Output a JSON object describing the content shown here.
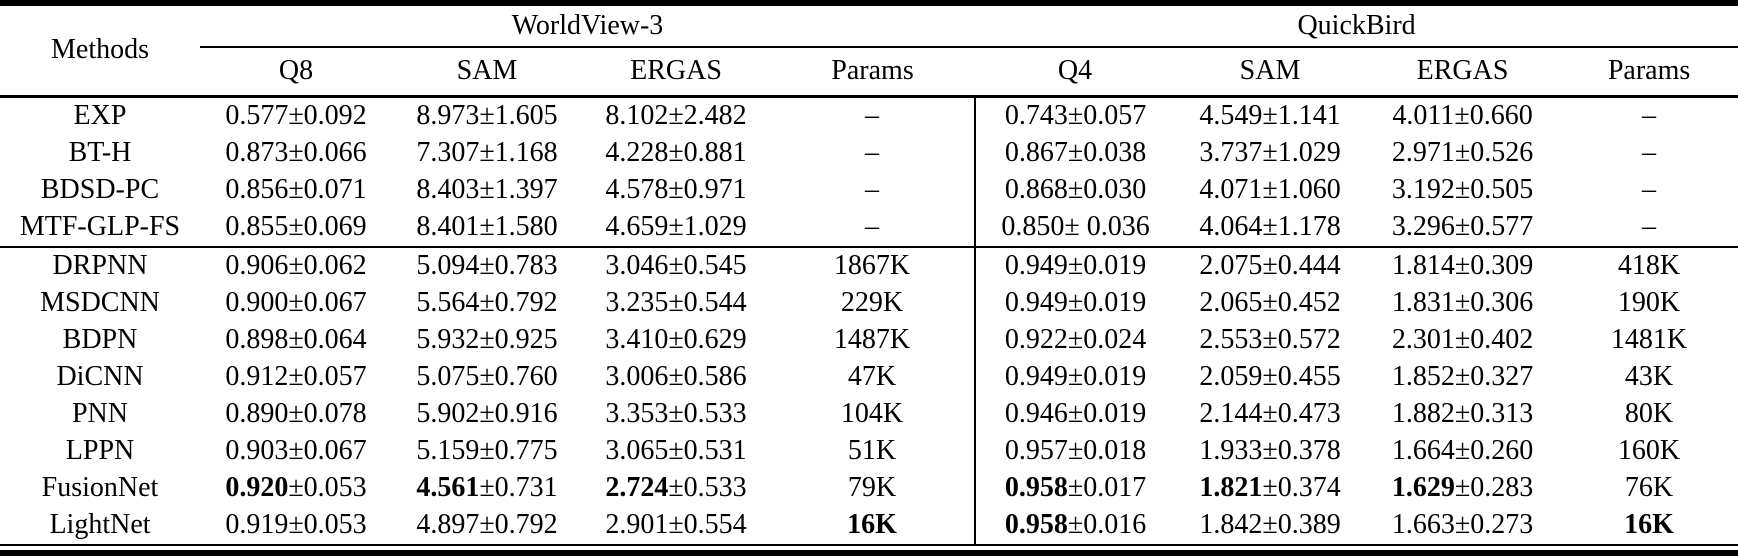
{
  "table": {
    "methods_header": "Methods",
    "pm": "±",
    "groups": [
      {
        "label": "WorldView-3",
        "columns": [
          "Q8",
          "SAM",
          "ERGAS",
          "Params"
        ]
      },
      {
        "label": "QuickBird",
        "columns": [
          "Q4",
          "SAM",
          "ERGAS",
          "Params"
        ]
      }
    ],
    "rows": [
      {
        "method": "EXP",
        "section": "classical",
        "cells": [
          {
            "v": "0.577",
            "e": "0.092"
          },
          {
            "v": "8.973",
            "e": "1.605"
          },
          {
            "v": "8.102",
            "e": "2.482"
          },
          {
            "v": "–"
          },
          {
            "v": "0.743",
            "e": "0.057"
          },
          {
            "v": "4.549",
            "e": "1.141"
          },
          {
            "v": "4.011",
            "e": "0.660"
          },
          {
            "v": "–"
          }
        ]
      },
      {
        "method": "BT-H",
        "section": "classical",
        "cells": [
          {
            "v": "0.873",
            "e": "0.066"
          },
          {
            "v": "7.307",
            "e": "1.168"
          },
          {
            "v": "4.228",
            "e": "0.881"
          },
          {
            "v": "–"
          },
          {
            "v": "0.867",
            "e": "0.038"
          },
          {
            "v": "3.737",
            "e": "1.029"
          },
          {
            "v": "2.971",
            "e": "0.526"
          },
          {
            "v": "–"
          }
        ]
      },
      {
        "method": "BDSD-PC",
        "section": "classical",
        "cells": [
          {
            "v": "0.856",
            "e": "0.071"
          },
          {
            "v": "8.403",
            "e": "1.397"
          },
          {
            "v": "4.578",
            "e": "0.971"
          },
          {
            "v": "–"
          },
          {
            "v": "0.868",
            "e": "0.030"
          },
          {
            "v": "4.071",
            "e": "1.060"
          },
          {
            "v": "3.192",
            "e": "0.505"
          },
          {
            "v": "–"
          }
        ]
      },
      {
        "method": "MTF-GLP-FS",
        "section": "classical",
        "cells": [
          {
            "v": "0.855",
            "e": "0.069"
          },
          {
            "v": "8.401",
            "e": "1.580"
          },
          {
            "v": "4.659",
            "e": "1.029"
          },
          {
            "v": "–"
          },
          {
            "v": "0.850",
            "e": "0.036",
            "gap": true
          },
          {
            "v": "4.064",
            "e": "1.178"
          },
          {
            "v": "3.296",
            "e": "0.577"
          },
          {
            "v": "–"
          }
        ]
      },
      {
        "method": "DRPNN",
        "section": "deep",
        "cells": [
          {
            "v": "0.906",
            "e": "0.062"
          },
          {
            "v": "5.094",
            "e": "0.783"
          },
          {
            "v": "3.046",
            "e": "0.545"
          },
          {
            "v": "1867K"
          },
          {
            "v": "0.949",
            "e": "0.019"
          },
          {
            "v": "2.075",
            "e": "0.444"
          },
          {
            "v": "1.814",
            "e": "0.309"
          },
          {
            "v": "418K"
          }
        ]
      },
      {
        "method": "MSDCNN",
        "section": "deep",
        "cells": [
          {
            "v": "0.900",
            "e": "0.067"
          },
          {
            "v": "5.564",
            "e": "0.792"
          },
          {
            "v": "3.235",
            "e": "0.544"
          },
          {
            "v": "229K"
          },
          {
            "v": "0.949",
            "e": "0.019"
          },
          {
            "v": "2.065",
            "e": "0.452"
          },
          {
            "v": "1.831",
            "e": "0.306"
          },
          {
            "v": "190K"
          }
        ]
      },
      {
        "method": "BDPN",
        "section": "deep",
        "cells": [
          {
            "v": "0.898",
            "e": "0.064"
          },
          {
            "v": "5.932",
            "e": "0.925"
          },
          {
            "v": "3.410",
            "e": "0.629"
          },
          {
            "v": "1487K"
          },
          {
            "v": "0.922",
            "e": "0.024"
          },
          {
            "v": "2.553",
            "e": "0.572"
          },
          {
            "v": "2.301",
            "e": "0.402"
          },
          {
            "v": "1481K"
          }
        ]
      },
      {
        "method": "DiCNN",
        "section": "deep",
        "cells": [
          {
            "v": "0.912",
            "e": "0.057"
          },
          {
            "v": "5.075",
            "e": "0.760"
          },
          {
            "v": "3.006",
            "e": "0.586"
          },
          {
            "v": "47K"
          },
          {
            "v": "0.949",
            "e": "0.019"
          },
          {
            "v": "2.059",
            "e": "0.455"
          },
          {
            "v": "1.852",
            "e": "0.327"
          },
          {
            "v": "43K"
          }
        ]
      },
      {
        "method": "PNN",
        "section": "deep",
        "cells": [
          {
            "v": "0.890",
            "e": "0.078"
          },
          {
            "v": "5.902",
            "e": "0.916"
          },
          {
            "v": "3.353",
            "e": "0.533"
          },
          {
            "v": "104K"
          },
          {
            "v": "0.946",
            "e": "0.019"
          },
          {
            "v": "2.144",
            "e": "0.473"
          },
          {
            "v": "1.882",
            "e": "0.313"
          },
          {
            "v": "80K"
          }
        ]
      },
      {
        "method": "LPPN",
        "section": "deep",
        "cells": [
          {
            "v": "0.903",
            "e": "0.067"
          },
          {
            "v": "5.159",
            "e": "0.775"
          },
          {
            "v": "3.065",
            "e": "0.531"
          },
          {
            "v": "51K"
          },
          {
            "v": "0.957",
            "e": "0.018"
          },
          {
            "v": "1.933",
            "e": "0.378"
          },
          {
            "v": "1.664",
            "e": "0.260"
          },
          {
            "v": "160K"
          }
        ]
      },
      {
        "method": "FusionNet",
        "section": "deep",
        "cells": [
          {
            "v": "0.920",
            "e": "0.053",
            "bold": true
          },
          {
            "v": "4.561",
            "e": "0.731",
            "bold": true
          },
          {
            "v": "2.724",
            "e": "0.533",
            "bold": true
          },
          {
            "v": "79K"
          },
          {
            "v": "0.958",
            "e": "0.017",
            "bold": true
          },
          {
            "v": "1.821",
            "e": "0.374",
            "bold": true
          },
          {
            "v": "1.629",
            "e": "0.283",
            "bold": true
          },
          {
            "v": "76K"
          }
        ]
      },
      {
        "method": "LightNet",
        "section": "deep",
        "cells": [
          {
            "v": "0.919",
            "e": "0.053"
          },
          {
            "v": "4.897",
            "e": "0.792"
          },
          {
            "v": "2.901",
            "e": "0.554"
          },
          {
            "v": "16K",
            "bold": true
          },
          {
            "v": "0.958",
            "e": "0.016",
            "bold": true
          },
          {
            "v": "1.842",
            "e": "0.389"
          },
          {
            "v": "1.663",
            "e": "0.273"
          },
          {
            "v": "16K",
            "bold": true
          }
        ]
      }
    ]
  }
}
